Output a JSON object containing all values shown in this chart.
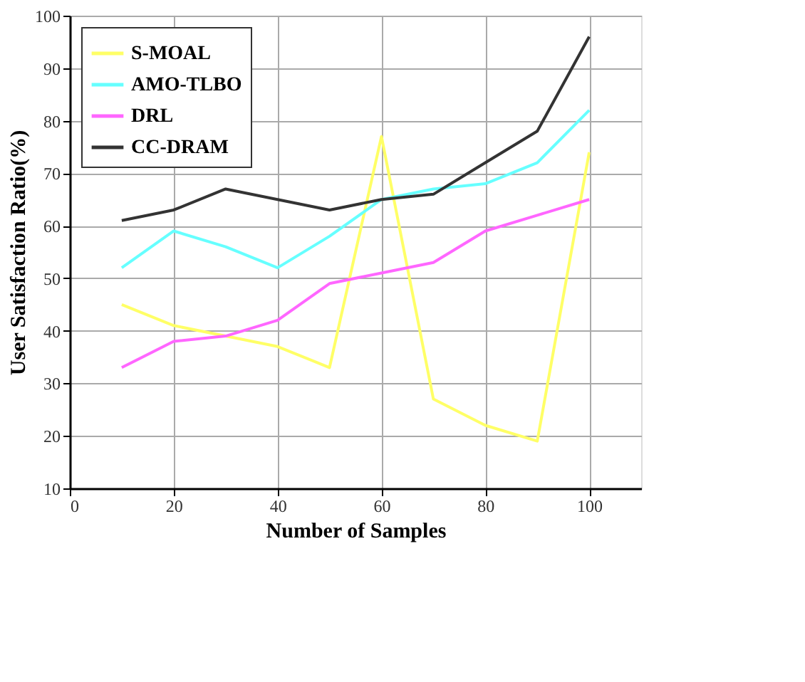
{
  "chart_data": {
    "type": "line",
    "xlabel": "Number of Samples",
    "ylabel": "User Satisfaction Ratio(%)",
    "x": [
      10,
      20,
      30,
      40,
      50,
      60,
      70,
      80,
      90,
      100
    ],
    "series": [
      {
        "name": "S-MOAL",
        "color": "#ffff66",
        "values": [
          45,
          41,
          39,
          37,
          33,
          77,
          27,
          22,
          19,
          74
        ]
      },
      {
        "name": "AMO-TLBO",
        "color": "#66ffff",
        "values": [
          52,
          59,
          56,
          52,
          58,
          65,
          67,
          68,
          72,
          82
        ]
      },
      {
        "name": "DRL",
        "color": "#ff66ff",
        "values": [
          33,
          38,
          39,
          42,
          49,
          51,
          53,
          59,
          62,
          65
        ]
      },
      {
        "name": "CC-DRAM",
        "color": "#333333",
        "values": [
          61,
          63,
          67,
          65,
          63,
          65,
          66,
          72,
          78,
          96
        ]
      }
    ],
    "xlim": [
      0,
      110
    ],
    "xticks": [
      0,
      20,
      40,
      60,
      80,
      100
    ],
    "ylim": [
      10,
      100
    ],
    "yticks": [
      10,
      20,
      30,
      40,
      50,
      60,
      70,
      80,
      90,
      100
    ],
    "grid": true,
    "legend": "top left",
    "marker": "none",
    "line_style": "solid"
  }
}
